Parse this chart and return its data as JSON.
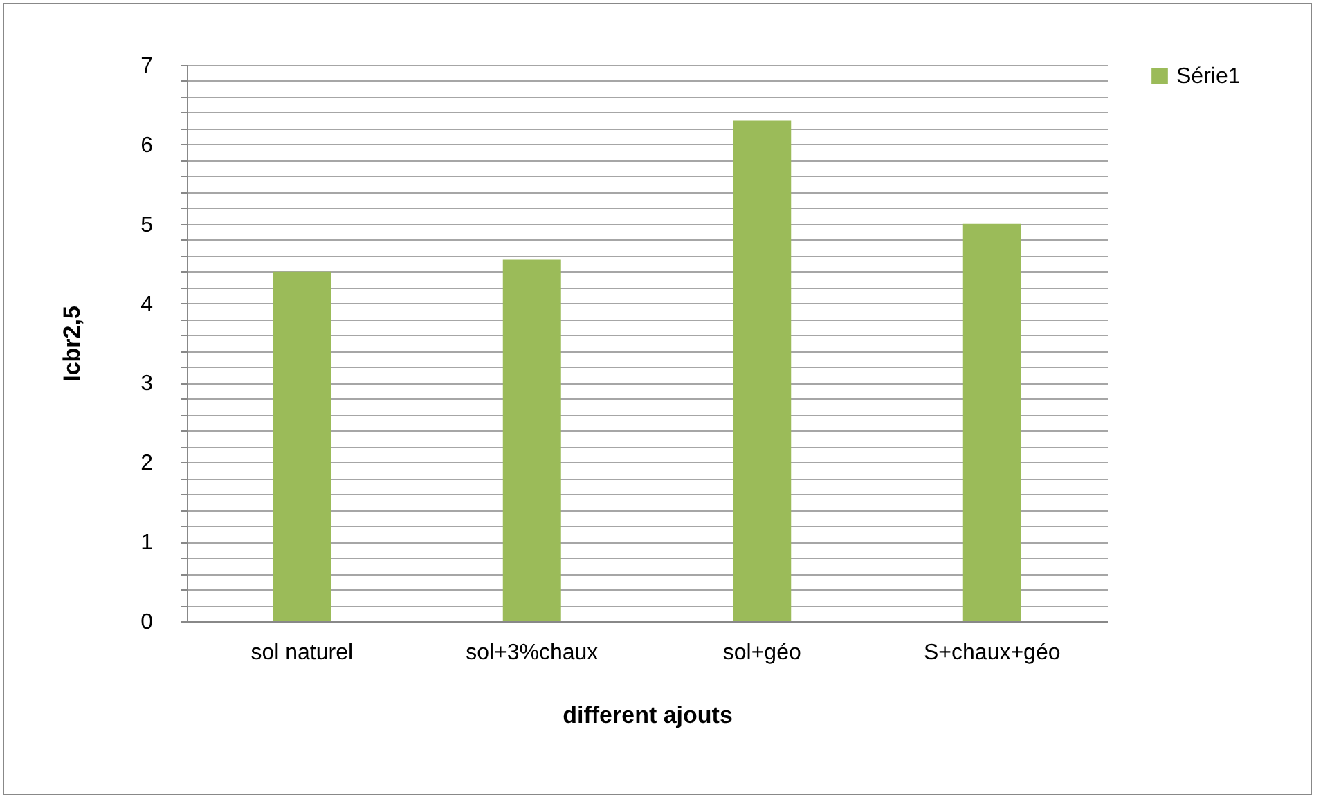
{
  "chart_data": {
    "type": "bar",
    "xlabel": "different ajouts",
    "ylabel": "Icbr2,5",
    "categories": [
      "sol naturel",
      "sol+3%chaux",
      "sol+géo",
      "S+chaux+géo"
    ],
    "series": [
      {
        "name": "Série1",
        "color": "#9bbb59",
        "values": [
          4.4,
          4.55,
          6.3,
          5.0
        ]
      }
    ],
    "ylim": [
      0,
      7
    ],
    "yticks": [
      0,
      {
        "value": 0.2,
        "label": null
      },
      {
        "value": 0.4,
        "label": null
      },
      {
        "value": 0.6,
        "label": null
      },
      {
        "value": 0.8,
        "label": null
      },
      1,
      {
        "value": 1.2,
        "label": null
      },
      {
        "value": 1.4,
        "label": null
      },
      {
        "value": 1.6,
        "label": null
      },
      {
        "value": 1.8,
        "label": null
      },
      2,
      {
        "value": 2.2,
        "label": null
      },
      {
        "value": 2.4,
        "label": null
      },
      {
        "value": 2.6,
        "label": null
      },
      {
        "value": 2.8,
        "label": null
      },
      3,
      {
        "value": 3.2,
        "label": null
      },
      {
        "value": 3.4,
        "label": null
      },
      {
        "value": 3.6,
        "label": null
      },
      {
        "value": 3.8,
        "label": null
      },
      4,
      {
        "value": 4.2,
        "label": null
      },
      {
        "value": 4.4,
        "label": null
      },
      {
        "value": 4.6,
        "label": null
      },
      {
        "value": 4.8,
        "label": null
      },
      5,
      {
        "value": 5.2,
        "label": null
      },
      {
        "value": 5.4,
        "label": null
      },
      {
        "value": 5.6,
        "label": null
      },
      {
        "value": 5.8,
        "label": null
      },
      6,
      {
        "value": 6.2,
        "label": null
      },
      {
        "value": 6.4,
        "label": null
      },
      {
        "value": 6.6,
        "label": null
      },
      {
        "value": 6.8,
        "label": null
      },
      7
    ],
    "grid": "y",
    "legend": "right"
  }
}
